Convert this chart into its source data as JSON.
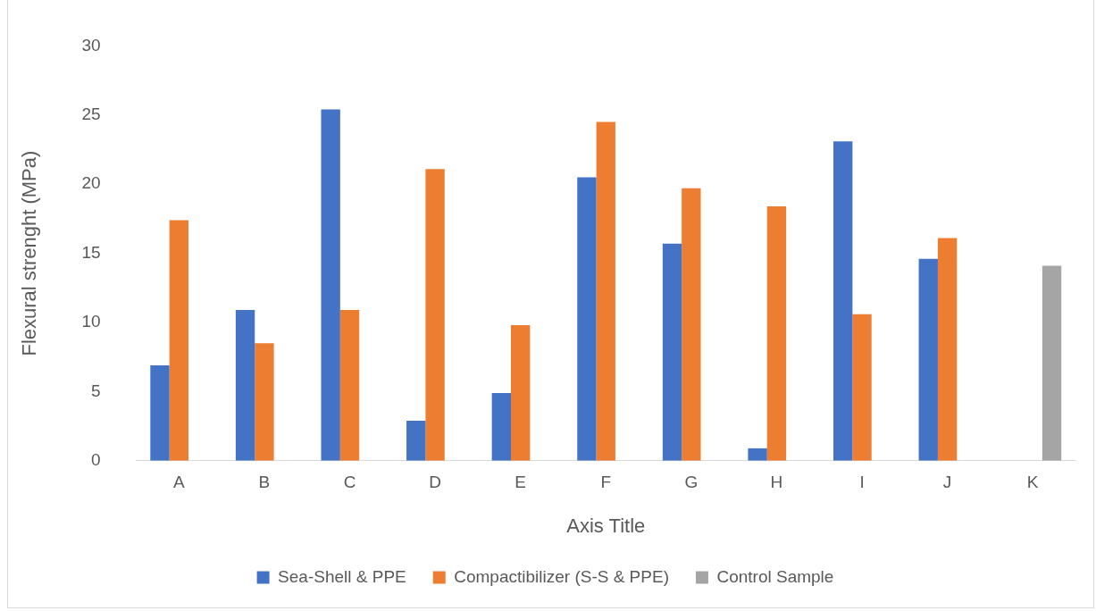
{
  "chart_data": {
    "type": "bar",
    "xlabel": "Axis Title",
    "ylabel": "Flexural strenght (MPa)",
    "categories": [
      "A",
      "B",
      "C",
      "D",
      "E",
      "F",
      "G",
      "H",
      "I",
      "J",
      "K"
    ],
    "series": [
      {
        "name": "Sea-Shell & PPE",
        "color": "#4472c4",
        "values": [
          6.9,
          10.9,
          25.4,
          2.9,
          4.9,
          20.5,
          15.7,
          0.9,
          23.1,
          14.6,
          null
        ]
      },
      {
        "name": "Compactibilizer (S-S & PPE)",
        "color": "#ed7d31",
        "values": [
          17.4,
          8.5,
          10.9,
          21.1,
          9.8,
          24.5,
          19.7,
          18.4,
          10.6,
          16.1,
          null
        ]
      },
      {
        "name": "Control Sample",
        "color": "#a5a5a5",
        "values": [
          null,
          null,
          null,
          null,
          null,
          null,
          null,
          null,
          null,
          null,
          14.1
        ]
      }
    ],
    "ylim": [
      0,
      30
    ],
    "yticks": [
      0,
      5,
      10,
      15,
      20,
      25,
      30
    ],
    "grid": false,
    "legend": "bottom"
  }
}
